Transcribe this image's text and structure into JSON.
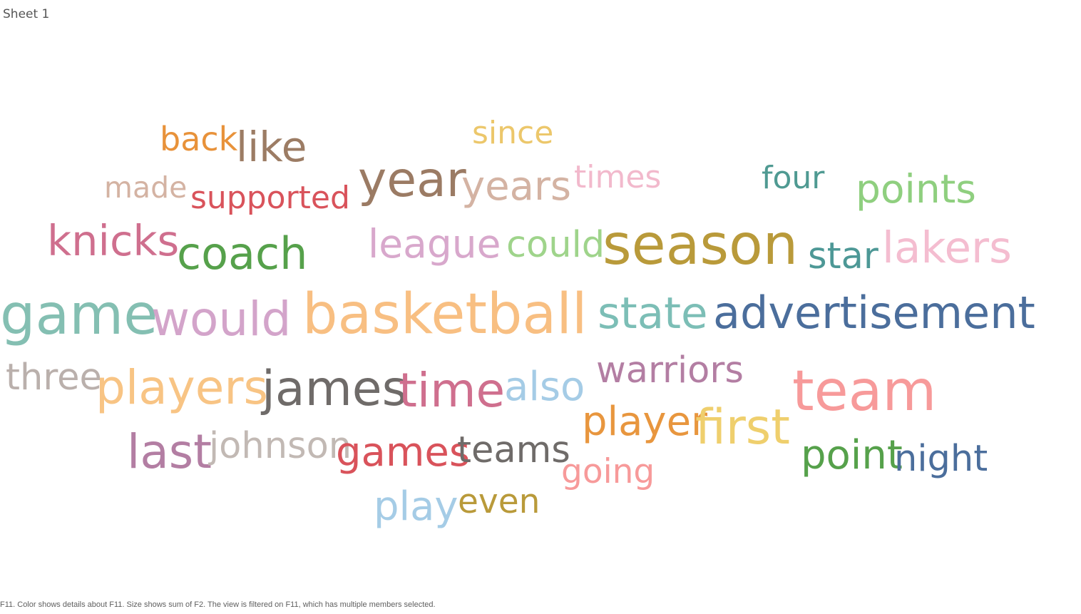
{
  "sheet": {
    "title": "Sheet 1"
  },
  "footer": {
    "caption": "F11.  Color shows details about F11.  Size shows sum of F2. The view is filtered on F11, which has multiple members selected."
  },
  "chart_data": {
    "type": "word_cloud",
    "color_field": "F11",
    "size_field": "sum of F2",
    "words": [
      {
        "text": "back",
        "color": "#e8923a",
        "relative_size": 0.59
      },
      {
        "text": "like",
        "color": "#9c7c64",
        "relative_size": 0.74
      },
      {
        "text": "since",
        "color": "#ecc76b",
        "relative_size": 0.56
      },
      {
        "text": "made",
        "color": "#d4b3a3",
        "relative_size": 0.52
      },
      {
        "text": "supported",
        "color": "#d9535b",
        "relative_size": 0.56
      },
      {
        "text": "year",
        "color": "#9b7b64",
        "relative_size": 0.87
      },
      {
        "text": "years",
        "color": "#d4b3a3",
        "relative_size": 0.72
      },
      {
        "text": "times",
        "color": "#f2b9cc",
        "relative_size": 0.56
      },
      {
        "text": "four",
        "color": "#4f9a92",
        "relative_size": 0.56
      },
      {
        "text": "points",
        "color": "#8fcf7f",
        "relative_size": 0.7
      },
      {
        "text": "knicks",
        "color": "#cf6f8e",
        "relative_size": 0.76
      },
      {
        "text": "coach",
        "color": "#56a14b",
        "relative_size": 0.8
      },
      {
        "text": "league",
        "color": "#d8a8cc",
        "relative_size": 0.7
      },
      {
        "text": "could",
        "color": "#9fd48b",
        "relative_size": 0.65
      },
      {
        "text": "season",
        "color": "#b99a3a",
        "relative_size": 1.0
      },
      {
        "text": "star",
        "color": "#4d9896",
        "relative_size": 0.65
      },
      {
        "text": "lakers",
        "color": "#f4bdd0",
        "relative_size": 0.78
      },
      {
        "text": "game",
        "color": "#84bfb2",
        "relative_size": 1.0
      },
      {
        "text": "would",
        "color": "#d3a4ca",
        "relative_size": 0.85
      },
      {
        "text": "basketball",
        "color": "#f8bf82",
        "relative_size": 1.0
      },
      {
        "text": "state",
        "color": "#7cbeb6",
        "relative_size": 0.78
      },
      {
        "text": "advertisement",
        "color": "#4b6e9c",
        "relative_size": 0.8
      },
      {
        "text": "three",
        "color": "#bab0ac",
        "relative_size": 0.65
      },
      {
        "text": "players",
        "color": "#f8c484",
        "relative_size": 0.85
      },
      {
        "text": "james",
        "color": "#6f6b69",
        "relative_size": 0.87
      },
      {
        "text": "time",
        "color": "#cf6f8e",
        "relative_size": 0.85
      },
      {
        "text": "also",
        "color": "#a5cce6",
        "relative_size": 0.72
      },
      {
        "text": "warriors",
        "color": "#b37ea3",
        "relative_size": 0.65
      },
      {
        "text": "team",
        "color": "#f79a9a",
        "relative_size": 1.0
      },
      {
        "text": "player",
        "color": "#e8963e",
        "relative_size": 0.72
      },
      {
        "text": "first",
        "color": "#efcf6d",
        "relative_size": 0.87
      },
      {
        "text": "last",
        "color": "#b37ea3",
        "relative_size": 0.85
      },
      {
        "text": "johnson",
        "color": "#c2b9b4",
        "relative_size": 0.65
      },
      {
        "text": "games",
        "color": "#d9535b",
        "relative_size": 0.72
      },
      {
        "text": "teams",
        "color": "#6f6b69",
        "relative_size": 0.65
      },
      {
        "text": "point",
        "color": "#56a14b",
        "relative_size": 0.72
      },
      {
        "text": "night",
        "color": "#4b6e9c",
        "relative_size": 0.65
      },
      {
        "text": "going",
        "color": "#f79a9a",
        "relative_size": 0.6
      },
      {
        "text": "play",
        "color": "#a5cce6",
        "relative_size": 0.72
      },
      {
        "text": "even",
        "color": "#b99a3a",
        "relative_size": 0.6
      }
    ]
  }
}
